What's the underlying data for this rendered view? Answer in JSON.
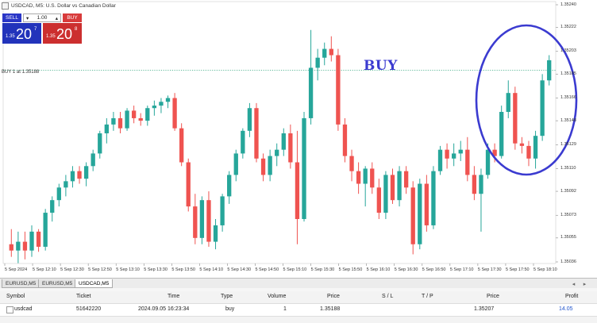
{
  "chart": {
    "title": "USDCAD, M5:  U.S. Dollar vs Canadian Dollar",
    "buy_line_label": "BUY 1 at 1.35188",
    "annotation": "BUY",
    "colors": {
      "bull": "#26a69a",
      "bear": "#ef5350",
      "buy_line": "#2fa37a",
      "circle": "#3b3bd0",
      "grid": "#e8e8e8"
    }
  },
  "trade_panel": {
    "sell_label": "SELL",
    "buy_label": "BUY",
    "volume": "1.00",
    "sell_price_small": "1.35",
    "sell_price_big": "20",
    "sell_price_sup": "7",
    "buy_price_small": "1.35",
    "buy_price_big": "20",
    "buy_price_sup": "8"
  },
  "price_axis": [
    "1.35240",
    "1.35222",
    "1.35203",
    "1.35185",
    "1.35166",
    "1.35148",
    "1.35129",
    "1.35110",
    "1.35092",
    "1.35073",
    "1.35055",
    "1.35036"
  ],
  "time_axis": [
    "5 Sep 2024",
    "5 Sep 12:10",
    "5 Sep 12:30",
    "5 Sep 12:50",
    "5 Sep 13:10",
    "5 Sep 13:30",
    "5 Sep 13:50",
    "5 Sep 14:10",
    "5 Sep 14:30",
    "5 Sep 14:50",
    "5 Sep 15:10",
    "5 Sep 15:30",
    "5 Sep 15:50",
    "5 Sep 16:10",
    "5 Sep 16:30",
    "5 Sep 16:50",
    "5 Sep 17:10",
    "5 Sep 17:30",
    "5 Sep 17:50",
    "5 Sep 18:10"
  ],
  "chart_data": {
    "type": "candlestick",
    "ylim": [
      1.35036,
      1.3524
    ],
    "candles": [
      {
        "o": 1.3505,
        "h": 1.35062,
        "l": 1.3504,
        "c": 1.35045
      },
      {
        "o": 1.35045,
        "h": 1.3506,
        "l": 1.35035,
        "c": 1.35052
      },
      {
        "o": 1.35052,
        "h": 1.3506,
        "l": 1.35038,
        "c": 1.35045
      },
      {
        "o": 1.35045,
        "h": 1.35065,
        "l": 1.3504,
        "c": 1.3506
      },
      {
        "o": 1.3506,
        "h": 1.35062,
        "l": 1.35044,
        "c": 1.35048
      },
      {
        "o": 1.35048,
        "h": 1.35078,
        "l": 1.35045,
        "c": 1.35075
      },
      {
        "o": 1.35075,
        "h": 1.35088,
        "l": 1.35068,
        "c": 1.35085
      },
      {
        "o": 1.35085,
        "h": 1.35098,
        "l": 1.3508,
        "c": 1.35095
      },
      {
        "o": 1.35095,
        "h": 1.35105,
        "l": 1.35088,
        "c": 1.351
      },
      {
        "o": 1.351,
        "h": 1.35112,
        "l": 1.35095,
        "c": 1.35108
      },
      {
        "o": 1.35108,
        "h": 1.35112,
        "l": 1.35098,
        "c": 1.35102
      },
      {
        "o": 1.35102,
        "h": 1.35115,
        "l": 1.35096,
        "c": 1.35112
      },
      {
        "o": 1.35112,
        "h": 1.35125,
        "l": 1.35108,
        "c": 1.35122
      },
      {
        "o": 1.35122,
        "h": 1.3514,
        "l": 1.35118,
        "c": 1.35138
      },
      {
        "o": 1.35138,
        "h": 1.3515,
        "l": 1.3513,
        "c": 1.35145
      },
      {
        "o": 1.35145,
        "h": 1.35155,
        "l": 1.3514,
        "c": 1.3515
      },
      {
        "o": 1.3515,
        "h": 1.35155,
        "l": 1.35138,
        "c": 1.35142
      },
      {
        "o": 1.35142,
        "h": 1.35158,
        "l": 1.3514,
        "c": 1.35156
      },
      {
        "o": 1.35156,
        "h": 1.3516,
        "l": 1.35146,
        "c": 1.3515
      },
      {
        "o": 1.3515,
        "h": 1.35154,
        "l": 1.35144,
        "c": 1.35148
      },
      {
        "o": 1.35148,
        "h": 1.3516,
        "l": 1.35144,
        "c": 1.35158
      },
      {
        "o": 1.35158,
        "h": 1.35164,
        "l": 1.35152,
        "c": 1.3516
      },
      {
        "o": 1.3516,
        "h": 1.35166,
        "l": 1.35154,
        "c": 1.35163
      },
      {
        "o": 1.35163,
        "h": 1.35168,
        "l": 1.35158,
        "c": 1.35166
      },
      {
        "o": 1.35166,
        "h": 1.3517,
        "l": 1.3514,
        "c": 1.35142
      },
      {
        "o": 1.35142,
        "h": 1.35146,
        "l": 1.35112,
        "c": 1.35115
      },
      {
        "o": 1.35115,
        "h": 1.35118,
        "l": 1.35076,
        "c": 1.3508
      },
      {
        "o": 1.3508,
        "h": 1.3509,
        "l": 1.3505,
        "c": 1.35055
      },
      {
        "o": 1.35055,
        "h": 1.35088,
        "l": 1.3505,
        "c": 1.35085
      },
      {
        "o": 1.35085,
        "h": 1.35092,
        "l": 1.35048,
        "c": 1.35052
      },
      {
        "o": 1.35052,
        "h": 1.3507,
        "l": 1.35046,
        "c": 1.35065
      },
      {
        "o": 1.35065,
        "h": 1.3509,
        "l": 1.3506,
        "c": 1.35088
      },
      {
        "o": 1.35088,
        "h": 1.35108,
        "l": 1.35082,
        "c": 1.35105
      },
      {
        "o": 1.35105,
        "h": 1.35125,
        "l": 1.351,
        "c": 1.35122
      },
      {
        "o": 1.35122,
        "h": 1.35142,
        "l": 1.35118,
        "c": 1.3514
      },
      {
        "o": 1.3514,
        "h": 1.35162,
        "l": 1.35135,
        "c": 1.35158
      },
      {
        "o": 1.35158,
        "h": 1.35162,
        "l": 1.35115,
        "c": 1.35118
      },
      {
        "o": 1.35118,
        "h": 1.35122,
        "l": 1.351,
        "c": 1.35105
      },
      {
        "o": 1.35105,
        "h": 1.35125,
        "l": 1.351,
        "c": 1.3512
      },
      {
        "o": 1.3512,
        "h": 1.3513,
        "l": 1.35112,
        "c": 1.35125
      },
      {
        "o": 1.35125,
        "h": 1.35142,
        "l": 1.3512,
        "c": 1.35138
      },
      {
        "o": 1.35138,
        "h": 1.35145,
        "l": 1.3511,
        "c": 1.35115
      },
      {
        "o": 1.35115,
        "h": 1.3514,
        "l": 1.3505,
        "c": 1.3507
      },
      {
        "o": 1.3507,
        "h": 1.35155,
        "l": 1.35068,
        "c": 1.3515
      },
      {
        "o": 1.3515,
        "h": 1.3522,
        "l": 1.35145,
        "c": 1.3519
      },
      {
        "o": 1.3519,
        "h": 1.35205,
        "l": 1.3518,
        "c": 1.35198
      },
      {
        "o": 1.35198,
        "h": 1.3521,
        "l": 1.35192,
        "c": 1.35205
      },
      {
        "o": 1.35205,
        "h": 1.35215,
        "l": 1.35195,
        "c": 1.352
      },
      {
        "o": 1.352,
        "h": 1.35205,
        "l": 1.3514,
        "c": 1.35145
      },
      {
        "o": 1.35145,
        "h": 1.3515,
        "l": 1.35115,
        "c": 1.3512
      },
      {
        "o": 1.3512,
        "h": 1.35125,
        "l": 1.351,
        "c": 1.35108
      },
      {
        "o": 1.35108,
        "h": 1.35115,
        "l": 1.3509,
        "c": 1.35098
      },
      {
        "o": 1.35098,
        "h": 1.35112,
        "l": 1.3508,
        "c": 1.3511
      },
      {
        "o": 1.3511,
        "h": 1.35115,
        "l": 1.3509,
        "c": 1.35095
      },
      {
        "o": 1.35095,
        "h": 1.35102,
        "l": 1.3507,
        "c": 1.35075
      },
      {
        "o": 1.35075,
        "h": 1.35108,
        "l": 1.3507,
        "c": 1.35105
      },
      {
        "o": 1.35105,
        "h": 1.3511,
        "l": 1.35082,
        "c": 1.35085
      },
      {
        "o": 1.35085,
        "h": 1.35112,
        "l": 1.3508,
        "c": 1.35108
      },
      {
        "o": 1.35108,
        "h": 1.35112,
        "l": 1.3509,
        "c": 1.35095
      },
      {
        "o": 1.35095,
        "h": 1.351,
        "l": 1.35042,
        "c": 1.3505
      },
      {
        "o": 1.3505,
        "h": 1.35102,
        "l": 1.35046,
        "c": 1.35098
      },
      {
        "o": 1.35098,
        "h": 1.35105,
        "l": 1.3506,
        "c": 1.35065
      },
      {
        "o": 1.35065,
        "h": 1.35112,
        "l": 1.35062,
        "c": 1.35108
      },
      {
        "o": 1.35108,
        "h": 1.35128,
        "l": 1.35105,
        "c": 1.35125
      },
      {
        "o": 1.35125,
        "h": 1.3513,
        "l": 1.3511,
        "c": 1.35118
      },
      {
        "o": 1.35118,
        "h": 1.3513,
        "l": 1.35112,
        "c": 1.35122
      },
      {
        "o": 1.35122,
        "h": 1.35132,
        "l": 1.35116,
        "c": 1.35125
      },
      {
        "o": 1.35125,
        "h": 1.35135,
        "l": 1.351,
        "c": 1.35105
      },
      {
        "o": 1.35105,
        "h": 1.35112,
        "l": 1.35085,
        "c": 1.3509
      },
      {
        "o": 1.3509,
        "h": 1.3511,
        "l": 1.3506,
        "c": 1.35105
      },
      {
        "o": 1.35105,
        "h": 1.3513,
        "l": 1.35102,
        "c": 1.35125
      },
      {
        "o": 1.35125,
        "h": 1.3513,
        "l": 1.35115,
        "c": 1.3512
      },
      {
        "o": 1.3512,
        "h": 1.3516,
        "l": 1.35118,
        "c": 1.35155
      },
      {
        "o": 1.35155,
        "h": 1.3518,
        "l": 1.3515,
        "c": 1.3517
      },
      {
        "o": 1.3517,
        "h": 1.35175,
        "l": 1.35125,
        "c": 1.3513
      },
      {
        "o": 1.3513,
        "h": 1.35135,
        "l": 1.35122,
        "c": 1.35128
      },
      {
        "o": 1.35128,
        "h": 1.35132,
        "l": 1.35112,
        "c": 1.35118
      },
      {
        "o": 1.35118,
        "h": 1.3514,
        "l": 1.3511,
        "c": 1.35136
      },
      {
        "o": 1.35136,
        "h": 1.35185,
        "l": 1.35132,
        "c": 1.3518
      },
      {
        "o": 1.3518,
        "h": 1.352,
        "l": 1.35176,
        "c": 1.35196
      }
    ]
  },
  "tabs": [
    "EURUSD,M5",
    "EURUSD,M5",
    "USDCAD,M5"
  ],
  "table": {
    "headers": {
      "symbol": "Symbol",
      "ticket": "Ticket",
      "time": "Time",
      "type": "Type",
      "volume": "Volume",
      "price": "Price",
      "sl": "S / L",
      "tp": "T / P",
      "price2": "Price",
      "profit": "Profit"
    },
    "row": {
      "symbol": "usdcad",
      "ticket": "51642220",
      "time": "2024.09.05 16:23:34",
      "type": "buy",
      "volume": "1",
      "price": "1.35188",
      "sl": "",
      "tp": "",
      "price2": "1.35207",
      "profit": "14.05"
    }
  }
}
